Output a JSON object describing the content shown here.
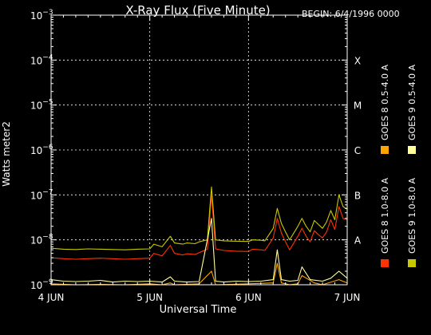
{
  "chart_data": {
    "type": "line",
    "title": "X-Ray Flux (Five Minute)",
    "begin_label": "BEGIN: 6/4/1996 0000",
    "xlabel": "Universal Time",
    "ylabel": "Watts meter2",
    "y_scale": "log",
    "ylim": [
      1e-09,
      0.001
    ],
    "xlim": [
      "1996-06-04 00:00",
      "1996-06-07 00:00"
    ],
    "y_ticks": [
      {
        "base": "10",
        "exp": "−9"
      },
      {
        "base": "10",
        "exp": "−8"
      },
      {
        "base": "10",
        "exp": "−7"
      },
      {
        "base": "10",
        "exp": "−6"
      },
      {
        "base": "10",
        "exp": "−5"
      },
      {
        "base": "10",
        "exp": "−4"
      },
      {
        "base": "10",
        "exp": "−3"
      }
    ],
    "x_ticks": [
      "4 JUN",
      "5 JUN",
      "6 JUN",
      "7 JUN"
    ],
    "flare_classes": [
      {
        "label": "A",
        "value": 1e-08
      },
      {
        "label": "B",
        "value": 1e-07
      },
      {
        "label": "C",
        "value": 1e-06
      },
      {
        "label": "M",
        "value": 1e-05
      },
      {
        "label": "X",
        "value": 0.0001
      }
    ],
    "grid": true,
    "legend_position": "right",
    "series": [
      {
        "name": "GOES 8 1.0-8.0 A",
        "color": "#ff3300",
        "x_hours": [
          0,
          3,
          6,
          9,
          12,
          15,
          18,
          21,
          24,
          25,
          27,
          29,
          30,
          32,
          33,
          35,
          36,
          38,
          39,
          40,
          42,
          45,
          48,
          49,
          51,
          52,
          54,
          55,
          56,
          57,
          58,
          60,
          61,
          62,
          63,
          64,
          65,
          66,
          67,
          68,
          69,
          70,
          71,
          72
        ],
        "y": [
          4e-09,
          3.8e-09,
          3.7e-09,
          3.8e-09,
          3.9e-09,
          3.8e-09,
          3.7e-09,
          3.8e-09,
          3.9e-09,
          5e-09,
          4.4e-09,
          7.5e-09,
          5e-09,
          4.6e-09,
          4.9e-09,
          4.7e-09,
          5.2e-09,
          6.2e-09,
          1e-07,
          6.3e-09,
          5.8e-09,
          5.6e-09,
          5.5e-09,
          6.2e-09,
          6e-09,
          5.8e-09,
          1.1e-08,
          3e-08,
          1.4e-08,
          9e-09,
          6e-09,
          1.2e-08,
          1.8e-08,
          1.2e-08,
          9e-09,
          1.6e-08,
          1.3e-08,
          1.1e-08,
          1.5e-08,
          2.8e-08,
          1.7e-08,
          5.5e-08,
          3e-08,
          2.8e-08
        ]
      },
      {
        "name": "GOES 8 0.5-4.0 A",
        "color": "#ffa500",
        "x_hours": [
          0,
          6,
          12,
          18,
          24,
          27,
          29,
          30,
          36,
          39,
          40,
          48,
          54,
          55,
          56,
          58,
          60,
          61,
          64,
          66,
          70,
          72
        ],
        "y": [
          1.05e-09,
          1e-09,
          1.02e-09,
          1e-09,
          1.05e-09,
          1e-09,
          1.1e-09,
          1e-09,
          1.05e-09,
          2e-09,
          1e-09,
          1.05e-09,
          1.1e-09,
          3e-09,
          1.1e-09,
          1e-09,
          1.05e-09,
          1.6e-09,
          1.1e-09,
          1e-09,
          1.3e-09,
          1.1e-09
        ]
      },
      {
        "name": "GOES 9 1.0-8.0 A",
        "color": "#c8c800",
        "x_hours": [
          0,
          3,
          6,
          9,
          12,
          15,
          18,
          21,
          24,
          25,
          27,
          29,
          30,
          32,
          33,
          35,
          36,
          38,
          39,
          40,
          42,
          45,
          48,
          49,
          51,
          52,
          54,
          55,
          56,
          57,
          58,
          60,
          61,
          62,
          63,
          64,
          65,
          66,
          67,
          68,
          69,
          70,
          71,
          72
        ],
        "y": [
          6.5e-09,
          6.2e-09,
          6.1e-09,
          6.3e-09,
          6.2e-09,
          6.1e-09,
          6e-09,
          6.2e-09,
          6.3e-09,
          8e-09,
          7e-09,
          1.2e-08,
          8.5e-09,
          8e-09,
          8.5e-09,
          8.2e-09,
          9e-09,
          1e-08,
          1.5e-07,
          1e-08,
          9.5e-09,
          9.3e-09,
          9.2e-09,
          1e-08,
          9.8e-09,
          9.5e-09,
          1.8e-08,
          5e-08,
          2.3e-08,
          1.5e-08,
          1e-08,
          2e-08,
          3e-08,
          2e-08,
          1.5e-08,
          2.7e-08,
          2.2e-08,
          1.8e-08,
          2.5e-08,
          4.5e-08,
          2.8e-08,
          1e-07,
          5.5e-08,
          4.8e-08
        ]
      },
      {
        "name": "GOES 9 0.5-4.0 A",
        "color": "#ffff99",
        "x_hours": [
          0,
          3,
          6,
          9,
          12,
          15,
          18,
          21,
          24,
          27,
          29,
          30,
          33,
          36,
          39,
          40,
          42,
          45,
          48,
          51,
          54,
          55,
          56,
          58,
          60,
          61,
          63,
          66,
          68,
          70,
          72
        ],
        "y": [
          1.3e-09,
          1.2e-09,
          1.18e-09,
          1.2e-09,
          1.25e-09,
          1.15e-09,
          1.2e-09,
          1.18e-09,
          1.2e-09,
          1.15e-09,
          1.5e-09,
          1.2e-09,
          1.15e-09,
          1.18e-09,
          3e-08,
          1.2e-09,
          1.15e-09,
          1.2e-09,
          1.18e-09,
          1.2e-09,
          1.3e-09,
          6e-09,
          1.3e-09,
          1.2e-09,
          1.25e-09,
          2.5e-09,
          1.3e-09,
          1.2e-09,
          1.4e-09,
          2e-09,
          1.4e-09
        ]
      }
    ]
  }
}
